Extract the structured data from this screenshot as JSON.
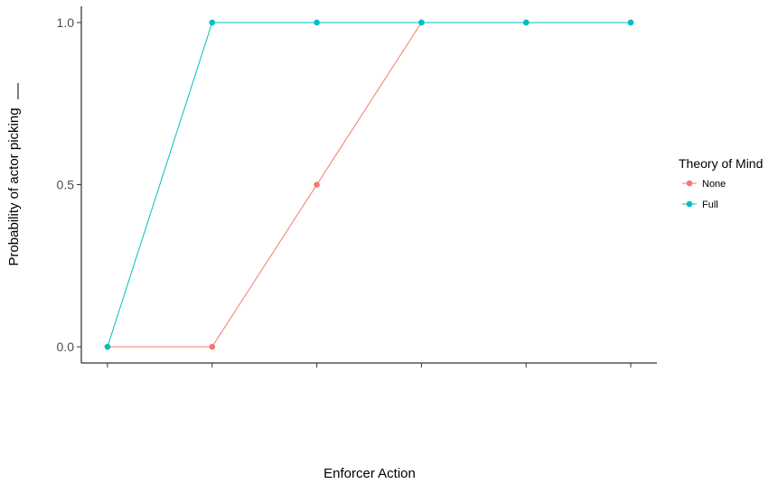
{
  "chart_data": {
    "type": "line",
    "xlabel": "Enforcer Action",
    "ylabel": "Probability of actor picking",
    "x": [
      1,
      2,
      3,
      4,
      5,
      6
    ],
    "xtick_labels": [
      "",
      "",
      "",
      "",
      "",
      ""
    ],
    "yticks": [
      0.0,
      0.5,
      1.0
    ],
    "ytick_labels": [
      "0.0",
      "0.5",
      "1.0"
    ],
    "ylim": [
      -0.05,
      1.05
    ],
    "xlim": [
      0.75,
      6.25
    ],
    "grid": false,
    "legend": {
      "title": "Theory of Mind",
      "position": "right"
    },
    "series": [
      {
        "name": "None",
        "color": "#F8766D",
        "values": [
          0,
          0,
          0.5,
          1,
          1,
          1
        ]
      },
      {
        "name": "Full",
        "color": "#00BFC4",
        "values": [
          0,
          1,
          1,
          1,
          1,
          1
        ]
      }
    ]
  }
}
